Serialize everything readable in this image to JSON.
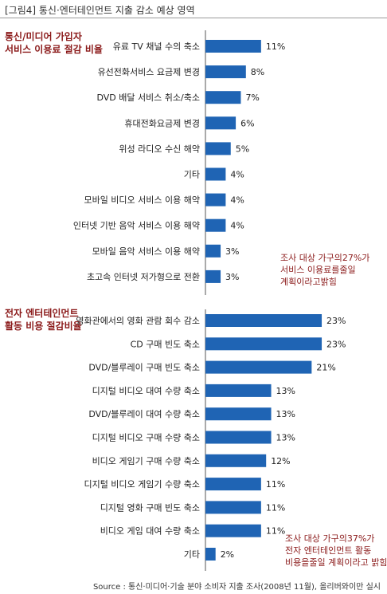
{
  "figure_title": "[그림4] 통신·엔터테인먼트 지출 감소 예상 영역",
  "source": "Source : 통신·미디어·기술 분야 소비자 지출 조사(2008년 11월), 올리버와이만 실시",
  "sections": [
    {
      "label_lines": [
        "통신/미디어 가입자",
        "서비스 이용료 절감 비율"
      ],
      "note_lines": [
        "조사 대상 가구의27%가",
        "서비스 이용료를줄일",
        "계획이라고밝힘"
      ]
    },
    {
      "label_lines": [
        "전자 엔터테인먼트",
        "활동 비용 절감비율"
      ],
      "note_lines": [
        "조사 대상 가구의37%가",
        "전자 엔터테인먼트 활동",
        "비용을줄일 계획이라고 밝힘"
      ]
    }
  ],
  "chart_data": [
    {
      "type": "bar",
      "orientation": "horizontal",
      "color": "#1f64b4",
      "categories": [
        "유료 TV 채널 수의 축소",
        "유선전화서비스 요금제 변경",
        "DVD 배달 서비스 취소/축소",
        "휴대전화요금제 변경",
        "위성 라디오 수신 해약",
        "기타",
        "모바일 비디오 서비스 이용 해약",
        "인터넷 기반 음악 서비스 이용 해약",
        "모바일 음악 서비스 이용 해약",
        "초고속 인터넷 저가형으로 전환"
      ],
      "values": [
        11,
        8,
        7,
        6,
        5,
        4,
        4,
        4,
        3,
        3
      ],
      "value_labels": [
        "11%",
        "8%",
        "7%",
        "6%",
        "5%",
        "4%",
        "4%",
        "4%",
        "3%",
        "3%"
      ]
    },
    {
      "type": "bar",
      "orientation": "horizontal",
      "color": "#1f64b4",
      "categories": [
        "영화관에서의 영화 관람 회수 감소",
        "CD 구매 빈도 축소",
        "DVD/블루레이 구매 빈도 축소",
        "디지털 비디오 대여 수량 축소",
        "DVD/블루레이 대여 수량 축소",
        "디지털 비디오 구매 수량 축소",
        "비디오 게임기 구매 수량 축소",
        "디지털 비디오 게임기 수량 축소",
        "디지털 영화 구매 빈도 축소",
        "비디오 게임 대여 수량 축소",
        "기타"
      ],
      "values": [
        23,
        23,
        21,
        13,
        13,
        13,
        12,
        11,
        11,
        11,
        2
      ],
      "value_labels": [
        "23%",
        "23%",
        "21%",
        "13%",
        "13%",
        "13%",
        "12%",
        "11%",
        "11%",
        "11%",
        "2%"
      ]
    }
  ]
}
